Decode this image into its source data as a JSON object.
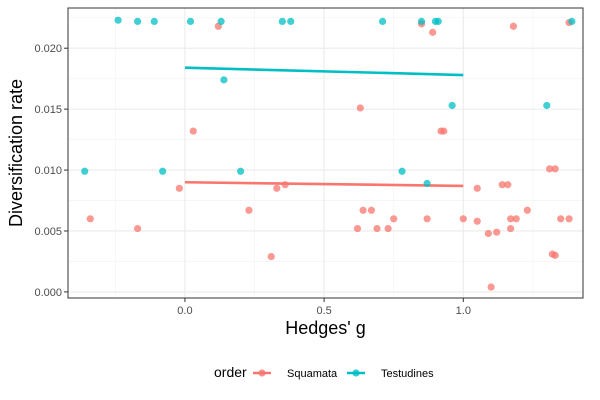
{
  "chart_data": {
    "type": "scatter",
    "title": "",
    "xlabel": "Hedges' g",
    "ylabel": "Diversification rate",
    "xlim": [
      -0.42,
      1.43
    ],
    "ylim": [
      -0.0005,
      0.0233
    ],
    "x_ticks": [
      0.0,
      0.5,
      1.0
    ],
    "x_tick_labels": [
      "0.0",
      "0.5",
      "1.0"
    ],
    "y_ticks": [
      0.0,
      0.005,
      0.01,
      0.015,
      0.02
    ],
    "y_tick_labels": [
      "0.000",
      "0.005",
      "0.010",
      "0.015",
      "0.020"
    ],
    "grid": true,
    "legend": {
      "title": "order",
      "position": "bottom",
      "entries": [
        "Squamata",
        "Testudines"
      ]
    },
    "series": [
      {
        "name": "Squamata",
        "color": "#F8766D",
        "points": [
          [
            -0.34,
            0.006
          ],
          [
            -0.17,
            0.0052
          ],
          [
            -0.02,
            0.0085
          ],
          [
            0.03,
            0.0132
          ],
          [
            0.12,
            0.0218
          ],
          [
            0.23,
            0.0067
          ],
          [
            0.31,
            0.0029
          ],
          [
            0.33,
            0.0085
          ],
          [
            0.36,
            0.0088
          ],
          [
            0.62,
            0.0052
          ],
          [
            0.63,
            0.0151
          ],
          [
            0.64,
            0.0067
          ],
          [
            0.67,
            0.0067
          ],
          [
            0.69,
            0.0052
          ],
          [
            0.73,
            0.0052
          ],
          [
            0.75,
            0.006
          ],
          [
            0.85,
            0.022
          ],
          [
            0.87,
            0.006
          ],
          [
            0.89,
            0.0213
          ],
          [
            0.92,
            0.0132
          ],
          [
            0.93,
            0.0132
          ],
          [
            1.0,
            0.006
          ],
          [
            1.05,
            0.0085
          ],
          [
            1.05,
            0.0058
          ],
          [
            1.09,
            0.0048
          ],
          [
            1.1,
            0.0004
          ],
          [
            1.12,
            0.0049
          ],
          [
            1.14,
            0.0088
          ],
          [
            1.16,
            0.0088
          ],
          [
            1.17,
            0.0052
          ],
          [
            1.17,
            0.006
          ],
          [
            1.18,
            0.0218
          ],
          [
            1.19,
            0.006
          ],
          [
            1.23,
            0.0067
          ],
          [
            1.31,
            0.0101
          ],
          [
            1.32,
            0.0031
          ],
          [
            1.33,
            0.003
          ],
          [
            1.33,
            0.0101
          ],
          [
            1.35,
            0.006
          ],
          [
            1.38,
            0.0221
          ],
          [
            1.38,
            0.006
          ]
        ],
        "trend": [
          [
            0.0,
            0.009
          ],
          [
            1.0,
            0.0087
          ]
        ]
      },
      {
        "name": "Testudines",
        "color": "#00BFC4",
        "points": [
          [
            -0.36,
            0.0099
          ],
          [
            -0.24,
            0.0223
          ],
          [
            -0.17,
            0.0222
          ],
          [
            -0.11,
            0.0222
          ],
          [
            -0.08,
            0.0099
          ],
          [
            0.02,
            0.0222
          ],
          [
            0.13,
            0.0222
          ],
          [
            0.14,
            0.0174
          ],
          [
            0.2,
            0.0099
          ],
          [
            0.35,
            0.0222
          ],
          [
            0.38,
            0.0222
          ],
          [
            0.71,
            0.0222
          ],
          [
            0.78,
            0.0099
          ],
          [
            0.85,
            0.0222
          ],
          [
            0.87,
            0.0089
          ],
          [
            0.9,
            0.0222
          ],
          [
            0.91,
            0.0222
          ],
          [
            0.96,
            0.0153
          ],
          [
            1.3,
            0.0153
          ],
          [
            1.39,
            0.0222
          ]
        ],
        "trend": [
          [
            0.0,
            0.0184
          ],
          [
            1.0,
            0.0178
          ]
        ]
      }
    ]
  }
}
